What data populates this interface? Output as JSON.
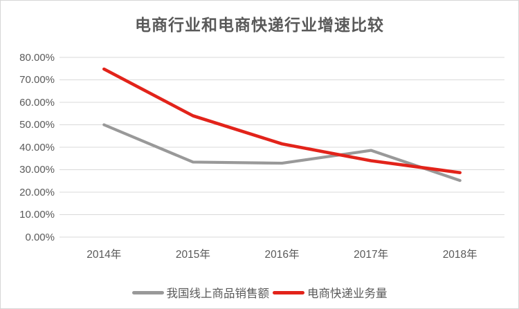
{
  "chart_data": {
    "type": "line",
    "title": "电商行业和电商快递行业增速比较",
    "categories": [
      "2014年",
      "2015年",
      "2016年",
      "2017年",
      "2018年"
    ],
    "series": [
      {
        "name": "我国线上商品销售额",
        "color": "#999999",
        "values": [
          50.0,
          33.4,
          32.9,
          38.6,
          25.2
        ]
      },
      {
        "name": "电商快递业务量",
        "color": "#e2231a",
        "values": [
          74.8,
          54.0,
          41.5,
          34.0,
          28.7
        ]
      }
    ],
    "ylabel": "",
    "xlabel": "",
    "ylim": [
      0,
      80
    ],
    "ytick_step": 10,
    "ytick_labels": [
      "0.00%",
      "10.00%",
      "20.00%",
      "30.00%",
      "40.00%",
      "50.00%",
      "60.00%",
      "70.00%",
      "80.00%"
    ],
    "grid": true,
    "legend_position": "bottom"
  },
  "colors": {
    "grid": "#d9d9d9",
    "axis_text": "#595959",
    "title_text": "#595959",
    "background": "#ffffff",
    "frame_border": "#d6d6d6"
  }
}
